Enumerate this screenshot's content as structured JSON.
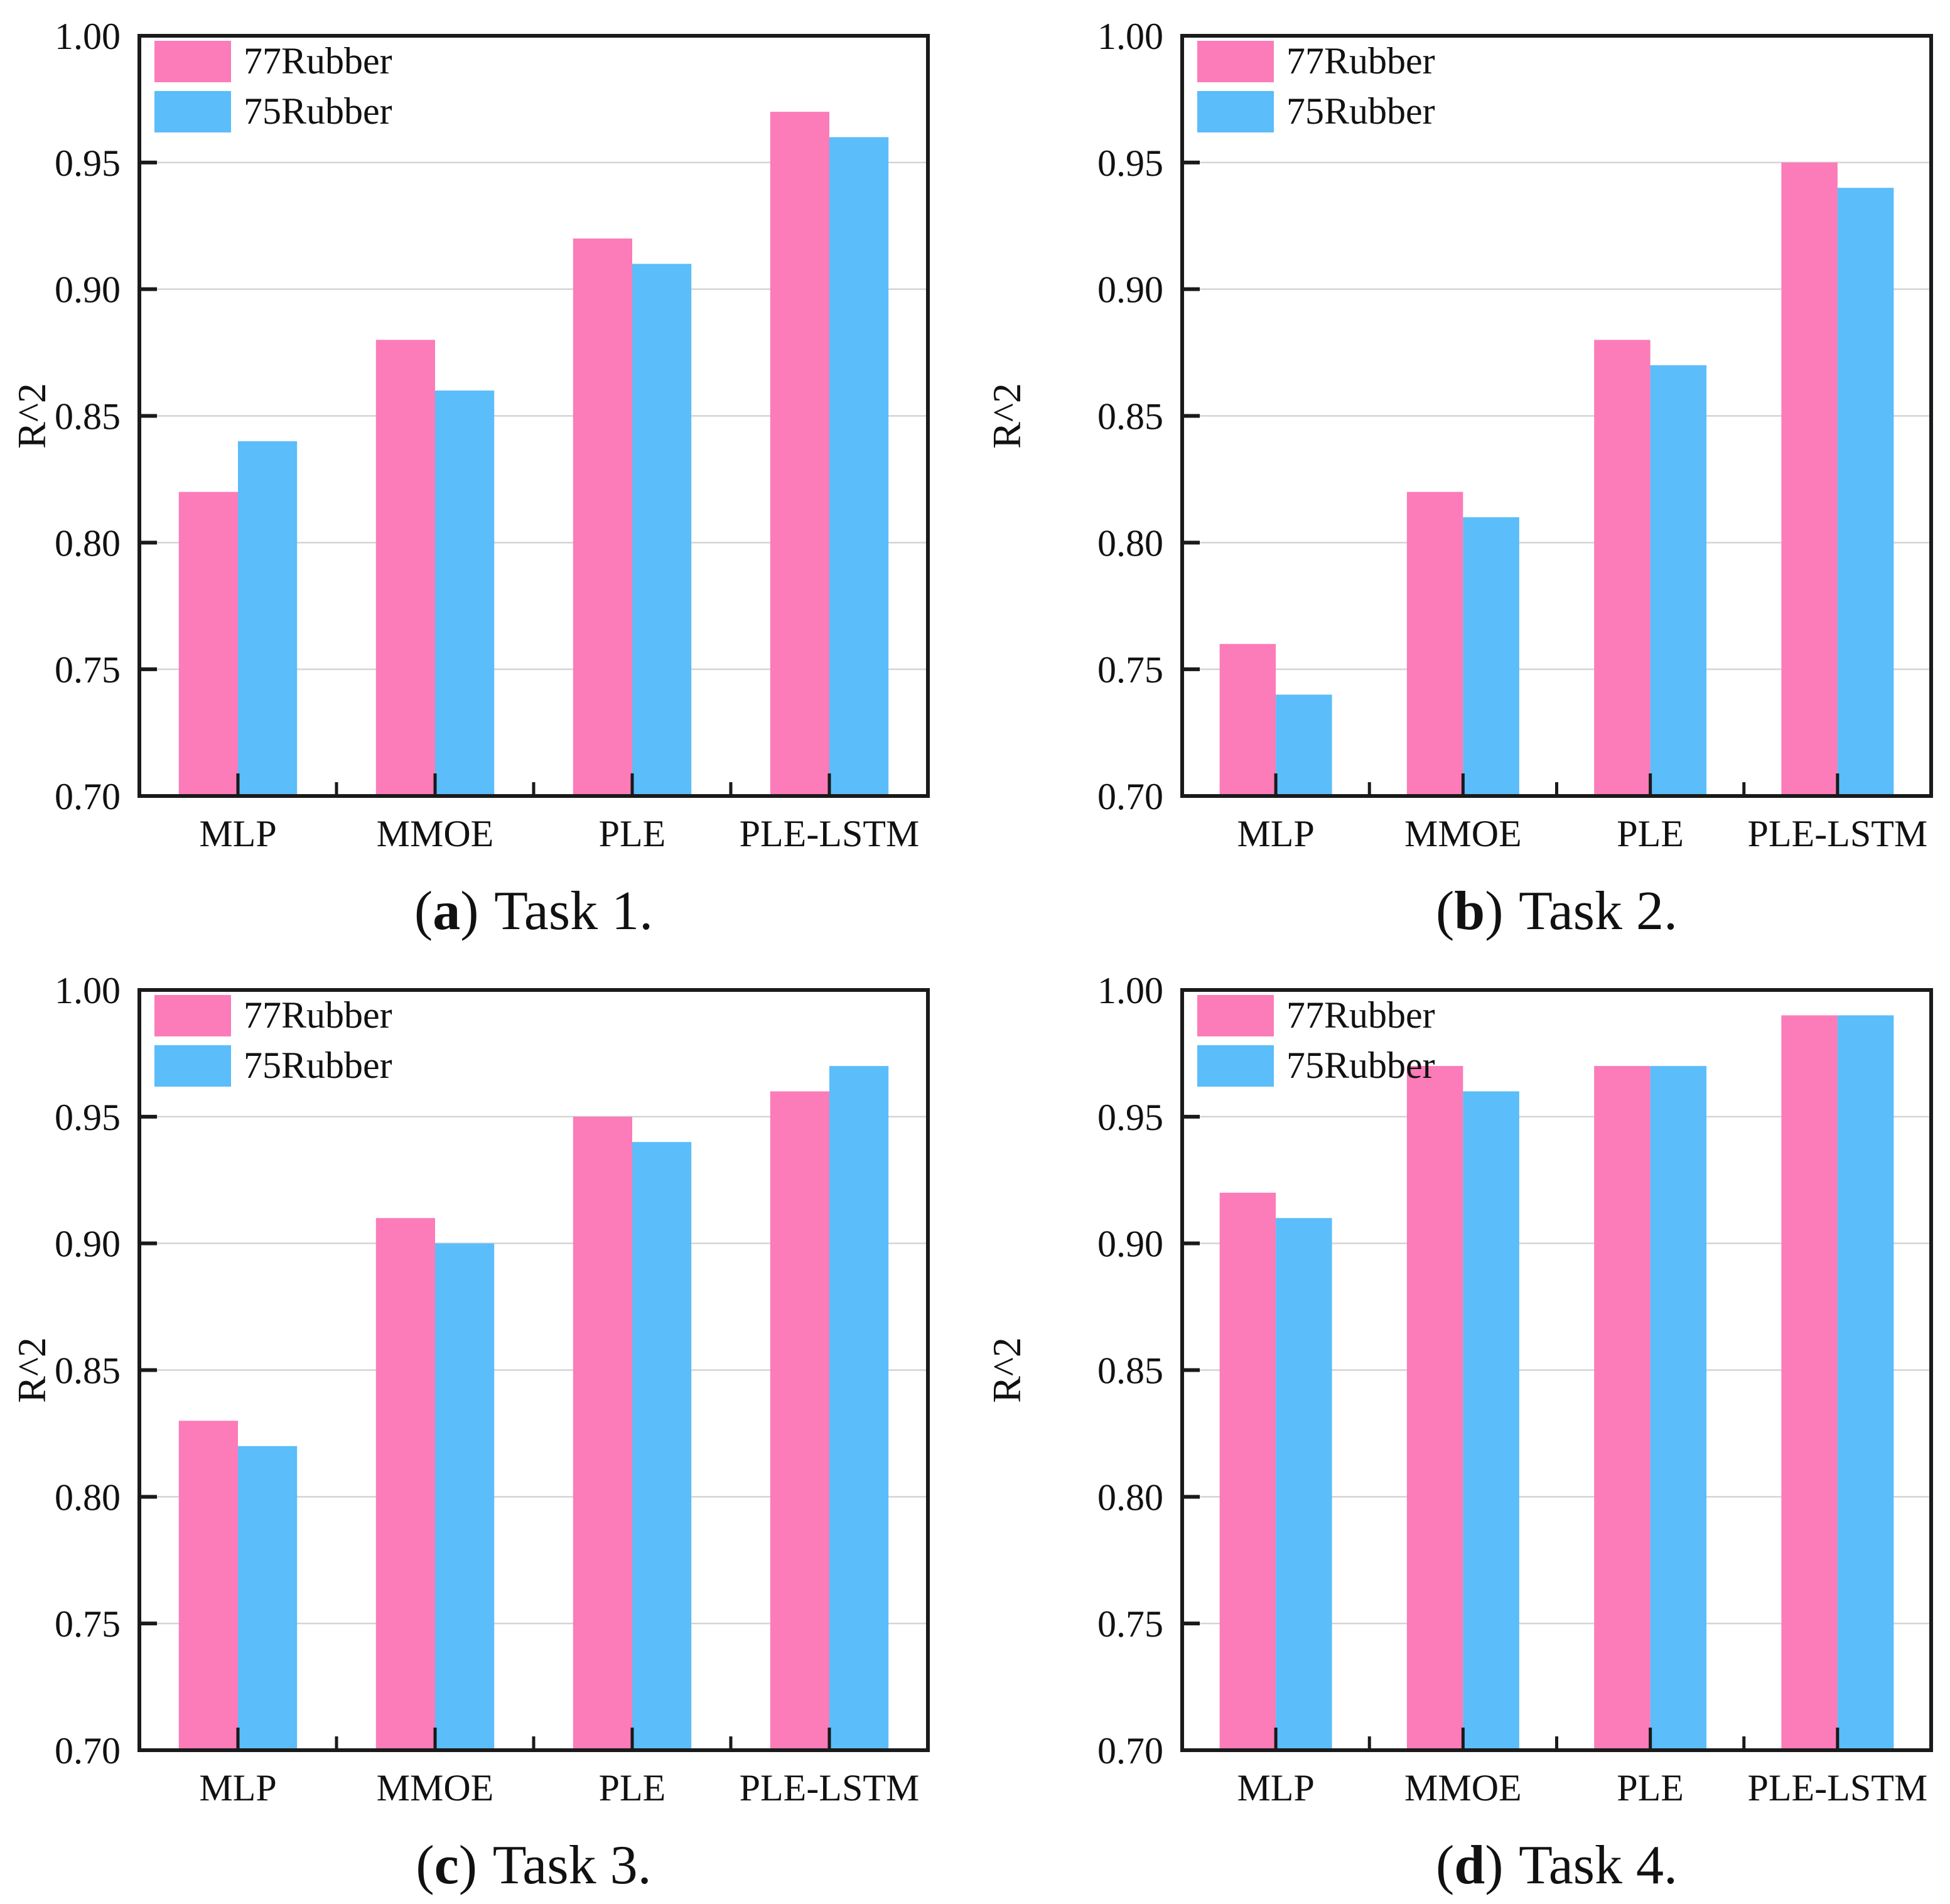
{
  "figure": {
    "background": "#ffffff",
    "series_colors": {
      "77Rubber": "#fb7cb8",
      "75Rubber": "#5bbdf9"
    },
    "grid_color": "#d4d4d4",
    "axis_color": "#1a1a1a",
    "text_color": "#111111"
  },
  "chart_data": [
    {
      "type": "bar",
      "title": "(a) Task 1.",
      "categories": [
        "MLP",
        "MMOE",
        "PLE",
        "PLE-LSTM"
      ],
      "series": [
        {
          "name": "77Rubber",
          "values": [
            0.82,
            0.88,
            0.92,
            0.97
          ]
        },
        {
          "name": "75Rubber",
          "values": [
            0.84,
            0.86,
            0.91,
            0.96
          ]
        }
      ],
      "xlabel": "",
      "ylabel": "R^2",
      "ylim": [
        0.7,
        1.0
      ],
      "yticks": [
        "0.70",
        "0.75",
        "0.80",
        "0.85",
        "0.90",
        "0.95",
        "1.00"
      ],
      "grid": "horizontal",
      "legend_position": "top-left"
    },
    {
      "type": "bar",
      "title": "(b) Task 2.",
      "categories": [
        "MLP",
        "MMOE",
        "PLE",
        "PLE-LSTM"
      ],
      "series": [
        {
          "name": "77Rubber",
          "values": [
            0.76,
            0.82,
            0.88,
            0.95
          ]
        },
        {
          "name": "75Rubber",
          "values": [
            0.74,
            0.81,
            0.87,
            0.94
          ]
        }
      ],
      "xlabel": "",
      "ylabel": "R^2",
      "ylim": [
        0.7,
        1.0
      ],
      "yticks": [
        "0.70",
        "0.75",
        "0.80",
        "0.85",
        "0.90",
        "0.95",
        "1.00"
      ],
      "grid": "horizontal",
      "legend_position": "top-left"
    },
    {
      "type": "bar",
      "title": "(c) Task 3.",
      "categories": [
        "MLP",
        "MMOE",
        "PLE",
        "PLE-LSTM"
      ],
      "series": [
        {
          "name": "77Rubber",
          "values": [
            0.83,
            0.91,
            0.95,
            0.96
          ]
        },
        {
          "name": "75Rubber",
          "values": [
            0.82,
            0.9,
            0.94,
            0.97
          ]
        }
      ],
      "xlabel": "",
      "ylabel": "R^2",
      "ylim": [
        0.7,
        1.0
      ],
      "yticks": [
        "0.70",
        "0.75",
        "0.80",
        "0.85",
        "0.90",
        "0.95",
        "1.00"
      ],
      "grid": "horizontal",
      "legend_position": "top-left"
    },
    {
      "type": "bar",
      "title": "(d) Task 4.",
      "categories": [
        "MLP",
        "MMOE",
        "PLE",
        "PLE-LSTM"
      ],
      "series": [
        {
          "name": "77Rubber",
          "values": [
            0.92,
            0.97,
            0.97,
            0.99
          ]
        },
        {
          "name": "75Rubber",
          "values": [
            0.91,
            0.96,
            0.97,
            0.99
          ]
        }
      ],
      "xlabel": "",
      "ylabel": "R^2",
      "ylim": [
        0.7,
        1.0
      ],
      "yticks": [
        "0.70",
        "0.75",
        "0.80",
        "0.85",
        "0.90",
        "0.95",
        "1.00"
      ],
      "grid": "horizontal",
      "legend_position": "top-left"
    }
  ],
  "panels": [
    {
      "caption_open": "(",
      "caption_letter": "a",
      "caption_close": ")",
      "caption_label": "Task 1."
    },
    {
      "caption_open": "(",
      "caption_letter": "b",
      "caption_close": ")",
      "caption_label": "Task 2."
    },
    {
      "caption_open": "(",
      "caption_letter": "c",
      "caption_close": ")",
      "caption_label": "Task 3."
    },
    {
      "caption_open": "(",
      "caption_letter": "d",
      "caption_close": ")",
      "caption_label": "Task 4."
    }
  ]
}
